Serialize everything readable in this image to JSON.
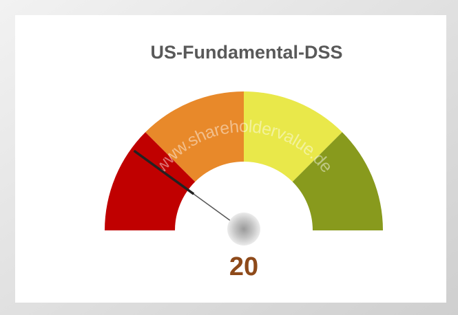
{
  "chart_data": {
    "type": "gauge",
    "title": "US-Fundamental-DSS",
    "value": 20,
    "ylim": [
      0,
      100
    ],
    "bands": [
      {
        "from": 0,
        "to": 25,
        "color": "#c00000"
      },
      {
        "from": 25,
        "to": 50,
        "color": "#e8892a"
      },
      {
        "from": 50,
        "to": 75,
        "color": "#e9e84a"
      },
      {
        "from": 75,
        "to": 100,
        "color": "#889a1d"
      }
    ],
    "value_color": "#8e4a1a",
    "watermark": "www.shareholdervalue.de"
  }
}
